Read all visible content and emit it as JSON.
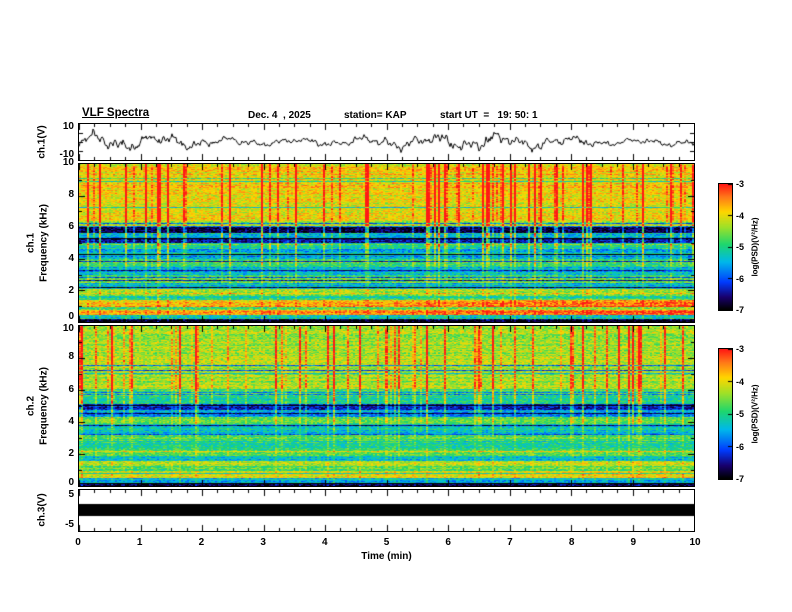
{
  "header": {
    "title": "VLF Spectra",
    "date": "Dec. 4  , 2025",
    "station": "station= KAP",
    "start_ut": "start UT  =   19: 50: 1"
  },
  "panels": {
    "wave1": {
      "ylabel": "ch.1(V)",
      "yticks": [
        "10",
        "-10"
      ]
    },
    "spec1": {
      "channel": "ch.1",
      "axis": "Frequency (kHz)",
      "yticks": [
        "10",
        "8",
        "6",
        "4",
        "2",
        "0"
      ]
    },
    "spec2": {
      "channel": "ch.2",
      "axis": "Frequency (kHz)",
      "yticks": [
        "10",
        "8",
        "6",
        "4",
        "2",
        "0"
      ]
    },
    "wave3": {
      "ylabel": "ch.3(V)",
      "yticks": [
        "5",
        "-5"
      ]
    }
  },
  "xaxis": {
    "label": "Time  (min)",
    "ticks": [
      "0",
      "1",
      "2",
      "3",
      "4",
      "5",
      "6",
      "7",
      "8",
      "9",
      "10"
    ]
  },
  "colorbars": [
    {
      "label": "log(PSD)(V²/Hz)",
      "ticks": [
        "-3",
        "-4",
        "-5",
        "-6",
        "-7"
      ]
    },
    {
      "label": "log(PSD)(V²/Hz)",
      "ticks": [
        "-3",
        "-4",
        "-5",
        "-6",
        "-7"
      ]
    }
  ],
  "colormap": {
    "range": [
      -7,
      -3
    ],
    "stops": [
      [
        0.0,
        0,
        0,
        0
      ],
      [
        0.1,
        25,
        0,
        110
      ],
      [
        0.22,
        0,
        60,
        255
      ],
      [
        0.38,
        0,
        185,
        235
      ],
      [
        0.52,
        30,
        215,
        110
      ],
      [
        0.66,
        160,
        225,
        40
      ],
      [
        0.78,
        255,
        215,
        0
      ],
      [
        0.9,
        255,
        120,
        25
      ],
      [
        1.0,
        255,
        25,
        20
      ]
    ]
  },
  "chart_data": [
    {
      "type": "line",
      "title": "ch.1 voltage time series",
      "ylabel": "ch.1(V)",
      "xlabel": "Time (min)",
      "xlim": [
        0,
        10
      ],
      "ylim": [
        -10,
        10
      ],
      "series_note": "broadband noise waveform oscillating about 0 V, typical excursions ±4 to ±8 V over 0-10 min",
      "render": {
        "seed": 1234,
        "components": [
          [
            2.6,
            9
          ],
          [
            1.9,
            23
          ],
          [
            1.3,
            61
          ],
          [
            0.9,
            141
          ]
        ],
        "noise": 2.6
      }
    },
    {
      "type": "heatmap",
      "title": "ch.1 VLF spectrogram",
      "ylabel": "Frequency (kHz)",
      "xlabel": "Time (min)",
      "xlim": [
        0,
        10
      ],
      "ylim": [
        0,
        10
      ],
      "zlabel": "log(PSD)(V²/Hz)",
      "zlim": [
        -7,
        -3
      ],
      "bands_note": "approximate mean log-PSD level per frequency band [f_lo_kHz, f_hi_kHz, level]; dense red vertical sferic streaks above ~6 kHz; dark bands 5-6 kHz; yellow bands 0.5-1.4 kHz",
      "bands": [
        [
          0.0,
          0.18,
          -6.9
        ],
        [
          0.18,
          0.42,
          -5.2
        ],
        [
          0.42,
          0.75,
          -3.7
        ],
        [
          0.75,
          0.95,
          -4.9
        ],
        [
          0.95,
          1.35,
          -3.8
        ],
        [
          1.35,
          1.6,
          -5.1
        ],
        [
          1.6,
          2.1,
          -4.4
        ],
        [
          2.1,
          2.45,
          -5.4
        ],
        [
          2.45,
          2.95,
          -4.7
        ],
        [
          2.95,
          3.5,
          -5.5
        ],
        [
          3.5,
          3.95,
          -4.9
        ],
        [
          3.95,
          4.6,
          -5.6
        ],
        [
          4.6,
          5.0,
          -5.0
        ],
        [
          5.0,
          5.35,
          -6.4
        ],
        [
          5.35,
          5.65,
          -5.6
        ],
        [
          5.65,
          6.05,
          -6.6
        ],
        [
          6.05,
          6.35,
          -4.5
        ],
        [
          6.35,
          8.0,
          -4.05
        ],
        [
          8.0,
          10.01,
          -3.95
        ]
      ],
      "render": {
        "seed": 777,
        "noise": 0.9,
        "streak_density": 0.26,
        "streak_min": 0.5,
        "streak_max": 2.6,
        "low_ramp": 0.5
      }
    },
    {
      "type": "heatmap",
      "title": "ch.2 VLF spectrogram",
      "ylabel": "Frequency (kHz)",
      "xlabel": "Time (min)",
      "xlim": [
        0,
        10
      ],
      "ylim": [
        0,
        10
      ],
      "zlabel": "log(PSD)(V²/Hz)",
      "zlim": [
        -7,
        -3
      ],
      "bands_note": "approximate mean log-PSD level per frequency band [f_lo_kHz, f_hi_kHz, level]; mostly green field with sferic streaks; dark band near 4.8-5.1 kHz",
      "bands": [
        [
          0.0,
          0.18,
          -6.9
        ],
        [
          0.18,
          0.45,
          -5.4
        ],
        [
          0.45,
          0.9,
          -4.1
        ],
        [
          0.9,
          1.2,
          -4.8
        ],
        [
          1.2,
          1.55,
          -4.3
        ],
        [
          1.55,
          1.85,
          -5.3
        ],
        [
          1.85,
          2.25,
          -4.6
        ],
        [
          2.25,
          2.8,
          -5.1
        ],
        [
          2.8,
          3.25,
          -4.7
        ],
        [
          3.25,
          3.85,
          -5.3
        ],
        [
          3.85,
          4.3,
          -4.8
        ],
        [
          4.3,
          4.75,
          -5.6
        ],
        [
          4.75,
          5.1,
          -6.3
        ],
        [
          5.1,
          5.6,
          -5.0
        ],
        [
          5.6,
          6.1,
          -4.8
        ],
        [
          6.1,
          10.01,
          -4.35
        ]
      ],
      "render": {
        "seed": 4242,
        "noise": 0.85,
        "streak_density": 0.22,
        "streak_min": 0.4,
        "streak_max": 2.1,
        "low_ramp": 0.2
      }
    },
    {
      "type": "line",
      "title": "ch.3 voltage time series",
      "ylabel": "ch.3(V)",
      "xlabel": "Time (min)",
      "xlim": [
        0,
        10
      ],
      "ylim": [
        -5,
        5
      ],
      "series_note": "saturated / clipped constant-level signal rendered as a solid black band around 0 V (approx. ±1.5 V) across the full 0-10 min",
      "render": {
        "bar_v": [
          -1.5,
          1.5
        ]
      }
    }
  ]
}
